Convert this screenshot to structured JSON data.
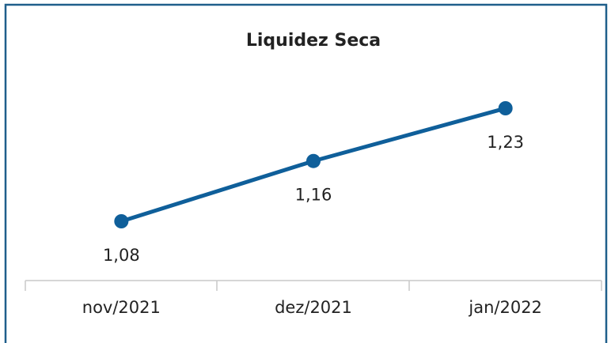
{
  "chart_data": {
    "type": "line",
    "title": "Liquidez Seca",
    "categories": [
      "nov/2021",
      "dez/2021",
      "jan/2022"
    ],
    "values": [
      1.08,
      1.16,
      1.23
    ],
    "value_labels": [
      "1,08",
      "1,16",
      "1,23"
    ],
    "color": "#0f5f9a"
  }
}
